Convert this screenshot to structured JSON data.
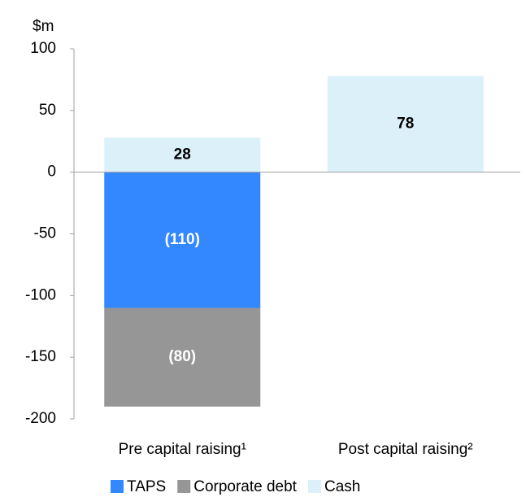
{
  "chart_data": {
    "type": "stacked-bar",
    "y_axis_label": "$m",
    "categories": [
      "Pre capital raising¹",
      "Post capital raising²"
    ],
    "series": [
      {
        "name": "TAPS",
        "color": "#3388ff",
        "values": [
          -110,
          null
        ],
        "value_labels": [
          "(110)",
          null
        ]
      },
      {
        "name": "Corporate debt",
        "color": "#969696",
        "values": [
          -80,
          null
        ],
        "value_labels": [
          "(80)",
          null
        ]
      },
      {
        "name": "Cash",
        "color": "#dcf0fa",
        "values": [
          28,
          78
        ],
        "value_labels": [
          "28",
          "78"
        ]
      }
    ],
    "ylim": [
      -200,
      100
    ],
    "yticks": [
      -200,
      -150,
      -100,
      -50,
      0,
      50,
      100
    ],
    "grid": false,
    "legend": "bottom"
  }
}
